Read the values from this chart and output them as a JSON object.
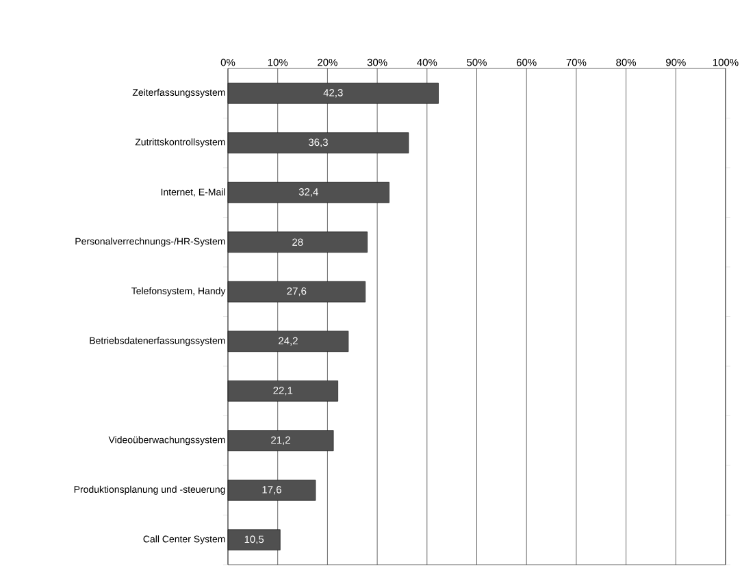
{
  "chart_data": {
    "type": "bar",
    "orientation": "horizontal",
    "categories": [
      "Zeiterfassungssystem",
      "Zutrittskontrollsystem",
      "Internet, E-Mail",
      "Personalverrechnungs-/HR-System",
      "Telefonsystem, Handy",
      "Betriebsdatenerfassungssystem",
      null,
      "Videoüberwachungssystem",
      "Produktionsplanung und -steuerung",
      "Call Center System"
    ],
    "values": [
      42.3,
      36.3,
      32.4,
      28,
      27.6,
      24.2,
      22.1,
      21.2,
      17.6,
      10.5
    ],
    "value_labels": [
      "42,3",
      "36,3",
      "32,4",
      "28",
      "27,6",
      "24,2",
      "22,1",
      "21,2",
      "17,6",
      "10,5"
    ],
    "color": "#505050",
    "xlim": [
      0,
      100
    ],
    "xticks": [
      {
        "value": 0,
        "label": "0%"
      },
      {
        "value": 10,
        "label": "10%"
      },
      {
        "value": 20,
        "label": "20%"
      },
      {
        "value": 30,
        "label": "30%"
      },
      {
        "value": 40,
        "label": "40%"
      },
      {
        "value": 50,
        "label": "50%"
      },
      {
        "value": 60,
        "label": "60%"
      },
      {
        "value": 70,
        "label": "70%"
      },
      {
        "value": 80,
        "label": "80%"
      },
      {
        "value": 90,
        "label": "90%"
      },
      {
        "value": 100,
        "label": "100%"
      }
    ],
    "grid": "x"
  }
}
